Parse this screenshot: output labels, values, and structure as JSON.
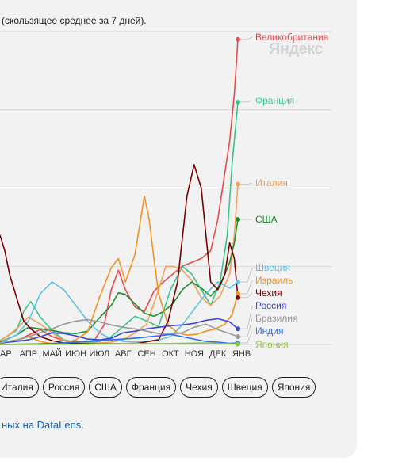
{
  "subtitle": "(скользящее среднее за 7 дней).",
  "watermark": "Яндекс",
  "footer": {
    "link_text": "ных на DataLens."
  },
  "country_buttons": [
    "Италия",
    "Россия",
    "США",
    "Франция",
    "Чехия",
    "Швеция",
    "Япония"
  ],
  "chart_data": {
    "type": "line",
    "x_ticks": [
      "АР",
      "АПР",
      "МАЙ",
      "ИЮН",
      "ИЮЛ",
      "АВГ",
      "СЕН",
      "ОКТ",
      "НОЯ",
      "ДЕК",
      "ЯНВ"
    ],
    "xlim": [
      2.3,
      12.45
    ],
    "ylim": [
      0,
      4000
    ],
    "grid": true,
    "series": [
      {
        "name": "Великобритания",
        "color": "#e74c4c",
        "end": 3900,
        "points": [
          [
            2.3,
            30
          ],
          [
            3,
            40
          ],
          [
            3.5,
            120
          ],
          [
            4,
            190
          ],
          [
            4.5,
            100
          ],
          [
            5,
            50
          ],
          [
            5.5,
            30
          ],
          [
            6,
            25
          ],
          [
            6.3,
            60
          ],
          [
            6.7,
            250
          ],
          [
            7,
            700
          ],
          [
            7.3,
            950
          ],
          [
            7.6,
            700
          ],
          [
            8,
            480
          ],
          [
            8.4,
            420
          ],
          [
            8.8,
            680
          ],
          [
            9.2,
            800
          ],
          [
            9.6,
            900
          ],
          [
            10,
            1000
          ],
          [
            10.4,
            1050
          ],
          [
            10.8,
            1100
          ],
          [
            11.2,
            1200
          ],
          [
            11.5,
            1600
          ],
          [
            11.8,
            2200
          ],
          [
            12,
            2600
          ],
          [
            12.2,
            3200
          ],
          [
            12.35,
            3900
          ]
        ]
      },
      {
        "name": "Франция",
        "color": "#3cc48a",
        "end": 3100,
        "points": [
          [
            2.3,
            50
          ],
          [
            3,
            180
          ],
          [
            3.3,
            420
          ],
          [
            3.6,
            550
          ],
          [
            4,
            350
          ],
          [
            4.5,
            180
          ],
          [
            5,
            60
          ],
          [
            5.5,
            30
          ],
          [
            6,
            20
          ],
          [
            6.5,
            40
          ],
          [
            7,
            100
          ],
          [
            7.5,
            230
          ],
          [
            8,
            360
          ],
          [
            8.5,
            300
          ],
          [
            9,
            230
          ],
          [
            9.5,
            700
          ],
          [
            10,
            1000
          ],
          [
            10.4,
            900
          ],
          [
            10.8,
            700
          ],
          [
            11.2,
            500
          ],
          [
            11.6,
            800
          ],
          [
            11.9,
            1400
          ],
          [
            12.1,
            2300
          ],
          [
            12.35,
            3100
          ]
        ]
      },
      {
        "name": "Италия",
        "color": "#f4a05a",
        "end": 2050,
        "points": [
          [
            2.3,
            40
          ],
          [
            3,
            200
          ],
          [
            3.5,
            350
          ],
          [
            4,
            260
          ],
          [
            4.5,
            150
          ],
          [
            5,
            50
          ],
          [
            5.5,
            20
          ],
          [
            6,
            15
          ],
          [
            6.5,
            20
          ],
          [
            7,
            30
          ],
          [
            7.5,
            60
          ],
          [
            8,
            150
          ],
          [
            8.5,
            260
          ],
          [
            9,
            700
          ],
          [
            9.3,
            1000
          ],
          [
            9.6,
            1000
          ],
          [
            10,
            950
          ],
          [
            10.4,
            820
          ],
          [
            10.8,
            600
          ],
          [
            11.2,
            500
          ],
          [
            11.6,
            620
          ],
          [
            12,
            900
          ],
          [
            12.2,
            1400
          ],
          [
            12.35,
            2050
          ]
        ]
      },
      {
        "name": "США",
        "color": "#1e8f2e",
        "end": 1600,
        "points": [
          [
            2.3,
            30
          ],
          [
            3,
            120
          ],
          [
            3.5,
            220
          ],
          [
            4,
            200
          ],
          [
            4.5,
            180
          ],
          [
            5,
            150
          ],
          [
            5.5,
            140
          ],
          [
            6,
            170
          ],
          [
            6.5,
            340
          ],
          [
            7,
            500
          ],
          [
            7.3,
            660
          ],
          [
            7.6,
            640
          ],
          [
            8,
            520
          ],
          [
            8.4,
            400
          ],
          [
            8.8,
            360
          ],
          [
            9.2,
            420
          ],
          [
            9.6,
            520
          ],
          [
            10,
            700
          ],
          [
            10.4,
            800
          ],
          [
            10.8,
            720
          ],
          [
            11.2,
            620
          ],
          [
            11.6,
            750
          ],
          [
            12,
            1050
          ],
          [
            12.2,
            1300
          ],
          [
            12.35,
            1600
          ]
        ]
      },
      {
        "name": "Швеция",
        "color": "#63c0e6",
        "end": 800,
        "points": [
          [
            2.3,
            20
          ],
          [
            3,
            120
          ],
          [
            3.5,
            300
          ],
          [
            4,
            650
          ],
          [
            4.5,
            800
          ],
          [
            5,
            700
          ],
          [
            5.5,
            500
          ],
          [
            6,
            300
          ],
          [
            6.5,
            150
          ],
          [
            7,
            70
          ],
          [
            7.5,
            40
          ],
          [
            8,
            30
          ],
          [
            8.5,
            40
          ],
          [
            9,
            60
          ],
          [
            9.5,
            100
          ],
          [
            10,
            250
          ],
          [
            10.5,
            450
          ],
          [
            11,
            650
          ],
          [
            11.5,
            800
          ],
          [
            12,
            720
          ],
          [
            12.35,
            800
          ]
        ]
      },
      {
        "name": "Израиль",
        "color": "#f39220",
        "end": 650,
        "points": [
          [
            2.3,
            10
          ],
          [
            3,
            50
          ],
          [
            3.5,
            100
          ],
          [
            4,
            40
          ],
          [
            4.5,
            10
          ],
          [
            5,
            20
          ],
          [
            5.5,
            60
          ],
          [
            6,
            160
          ],
          [
            6.5,
            600
          ],
          [
            7,
            980
          ],
          [
            7.3,
            1100
          ],
          [
            7.6,
            800
          ],
          [
            8,
            1150
          ],
          [
            8.4,
            1900
          ],
          [
            8.6,
            1600
          ],
          [
            8.8,
            1100
          ],
          [
            9,
            650
          ],
          [
            9.4,
            250
          ],
          [
            9.8,
            150
          ],
          [
            10.2,
            120
          ],
          [
            10.6,
            130
          ],
          [
            11,
            170
          ],
          [
            11.4,
            200
          ],
          [
            11.8,
            260
          ],
          [
            12.1,
            380
          ],
          [
            12.35,
            650
          ]
        ]
      },
      {
        "name": "Чехия",
        "color": "#7a0000",
        "end": 600,
        "points": [
          [
            2.3,
            1400
          ],
          [
            2.5,
            1200
          ],
          [
            2.7,
            900
          ],
          [
            3,
            600
          ],
          [
            3.3,
            300
          ],
          [
            3.6,
            200
          ],
          [
            4,
            100
          ],
          [
            4.5,
            50
          ],
          [
            5,
            20
          ],
          [
            6,
            10
          ],
          [
            7,
            10
          ],
          [
            8,
            10
          ],
          [
            9,
            60
          ],
          [
            9.4,
            300
          ],
          [
            9.8,
            800
          ],
          [
            10.2,
            1900
          ],
          [
            10.5,
            2300
          ],
          [
            10.8,
            2000
          ],
          [
            11,
            1400
          ],
          [
            11.2,
            800
          ],
          [
            11.5,
            700
          ],
          [
            11.8,
            900
          ],
          [
            12,
            1300
          ],
          [
            12.2,
            1100
          ],
          [
            12.35,
            600
          ]
        ]
      },
      {
        "name": "Россия",
        "color": "#3949d6",
        "end": 200,
        "points": [
          [
            2.3,
            20
          ],
          [
            3,
            40
          ],
          [
            3.5,
            60
          ],
          [
            4,
            100
          ],
          [
            4.5,
            150
          ],
          [
            5,
            140
          ],
          [
            5.5,
            110
          ],
          [
            6,
            70
          ],
          [
            6.5,
            60
          ],
          [
            7,
            80
          ],
          [
            7.5,
            150
          ],
          [
            8,
            170
          ],
          [
            8.5,
            200
          ],
          [
            9,
            220
          ],
          [
            9.5,
            240
          ],
          [
            10,
            250
          ],
          [
            10.5,
            270
          ],
          [
            11,
            310
          ],
          [
            11.5,
            330
          ],
          [
            12,
            290
          ],
          [
            12.35,
            200
          ]
        ]
      },
      {
        "name": "Бразилия",
        "color": "#9a9a9a",
        "end": 100,
        "points": [
          [
            2.3,
            20
          ],
          [
            3,
            60
          ],
          [
            3.5,
            100
          ],
          [
            4,
            150
          ],
          [
            4.5,
            200
          ],
          [
            5,
            260
          ],
          [
            5.5,
            300
          ],
          [
            6,
            320
          ],
          [
            6.5,
            290
          ],
          [
            7,
            250
          ],
          [
            7.5,
            220
          ],
          [
            8,
            200
          ],
          [
            8.5,
            170
          ],
          [
            9,
            140
          ],
          [
            9.5,
            130
          ],
          [
            10,
            150
          ],
          [
            10.5,
            220
          ],
          [
            11,
            260
          ],
          [
            11.5,
            190
          ],
          [
            12,
            140
          ],
          [
            12.35,
            100
          ]
        ]
      },
      {
        "name": "Индия",
        "color": "#2a6ff0",
        "end": 20,
        "points": [
          [
            2.3,
            0
          ],
          [
            3,
            3
          ],
          [
            4,
            8
          ],
          [
            5,
            20
          ],
          [
            6,
            40
          ],
          [
            7,
            60
          ],
          [
            8,
            80
          ],
          [
            9,
            110
          ],
          [
            9.5,
            130
          ],
          [
            10,
            100
          ],
          [
            10.5,
            70
          ],
          [
            11,
            40
          ],
          [
            11.5,
            30
          ],
          [
            12,
            15
          ],
          [
            12.35,
            20
          ]
        ]
      },
      {
        "name": "Япония",
        "color": "#8cc63f",
        "end": 5,
        "points": [
          [
            2.3,
            0
          ],
          [
            4,
            2
          ],
          [
            6,
            5
          ],
          [
            7,
            10
          ],
          [
            8,
            15
          ],
          [
            9,
            10
          ],
          [
            10,
            15
          ],
          [
            11,
            20
          ],
          [
            12,
            8
          ],
          [
            12.35,
            5
          ]
        ]
      }
    ]
  }
}
